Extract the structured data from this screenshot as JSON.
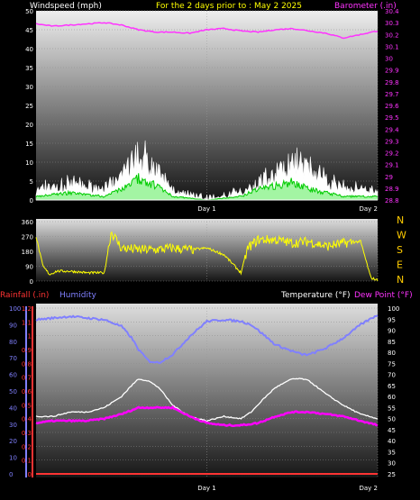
{
  "header": {
    "left_title": "Windspeed (mph)",
    "center_title": "For the 2 days prior to : May 2 2025",
    "right_title": "Barometer (.in)"
  },
  "colors": {
    "background": "#000000",
    "wind_white": "#ffffff",
    "wind_green": "#00cc00",
    "barometer": "#ff33ff",
    "direction": "#ffff00",
    "humidity": "#8080ff",
    "temperature": "#ffffff",
    "dewpoint": "#ff00ff",
    "rainfall": "#ff3333",
    "compass": "#ffcc00"
  },
  "chart_data": [
    {
      "type": "area",
      "title": "For the 2 days prior to : May 2 2025",
      "ylabel": "Windspeed (mph)",
      "ylabel_right": "Barometer (.in)",
      "ylim": [
        0,
        50
      ],
      "ylim_right": [
        28.8,
        30.4
      ],
      "yticks": [
        "0",
        "5",
        "10",
        "15",
        "20",
        "25",
        "30",
        "35",
        "40",
        "45",
        "50"
      ],
      "yticks_right": [
        "28.8",
        "28.9",
        "29",
        "29.1",
        "29.2",
        "29.3",
        "29.4",
        "29.5",
        "29.6",
        "29.7",
        "29.8",
        "29.9",
        "30",
        "30.1",
        "30.2",
        "30.3",
        "30.4"
      ],
      "xticks": [
        "Day 1",
        "Day 2"
      ],
      "grid": true,
      "series": [
        {
          "name": "Windspeed (mph)",
          "color": "#ffffff",
          "x": [
            0,
            0.03,
            0.06,
            0.1,
            0.15,
            0.2,
            0.25,
            0.28,
            0.3,
            0.33,
            0.36,
            0.4,
            0.45,
            0.5,
            0.55,
            0.6,
            0.63,
            0.66,
            0.7,
            0.73,
            0.76,
            0.8,
            0.85,
            0.9,
            0.95,
            1.0
          ],
          "values": [
            2,
            4,
            4,
            5,
            4,
            3,
            7,
            12,
            14,
            12,
            8,
            3,
            1,
            0,
            1,
            2,
            4,
            6,
            8,
            11,
            12,
            10,
            6,
            4,
            3,
            2
          ]
        },
        {
          "name": "Wind average",
          "color": "#00cc00",
          "x": [
            0,
            0.1,
            0.2,
            0.25,
            0.3,
            0.35,
            0.4,
            0.5,
            0.6,
            0.65,
            0.7,
            0.75,
            0.8,
            0.9,
            1.0
          ],
          "values": [
            1,
            2,
            1,
            3,
            6,
            4,
            1,
            0,
            1,
            3,
            4,
            5,
            3,
            1,
            1
          ]
        },
        {
          "name": "Barometer (.in)",
          "color": "#ff33ff",
          "axis": "right",
          "x": [
            0,
            0.05,
            0.1,
            0.15,
            0.2,
            0.25,
            0.3,
            0.35,
            0.4,
            0.45,
            0.5,
            0.55,
            0.6,
            0.65,
            0.7,
            0.75,
            0.8,
            0.85,
            0.9,
            0.95,
            1.0
          ],
          "values": [
            30.29,
            30.27,
            30.28,
            30.29,
            30.3,
            30.28,
            30.24,
            30.22,
            30.22,
            30.21,
            30.24,
            30.25,
            30.23,
            30.22,
            30.24,
            30.25,
            30.23,
            30.21,
            30.17,
            30.2,
            30.23
          ]
        }
      ]
    },
    {
      "type": "line",
      "ylim": [
        0,
        360
      ],
      "yticks": [
        "0",
        "90",
        "180",
        "270",
        "360"
      ],
      "compass_labels": [
        "N",
        "W",
        "S",
        "E",
        "N"
      ],
      "grid": true,
      "series": [
        {
          "name": "Wind direction",
          "color": "#ffff00",
          "x": [
            0,
            0.02,
            0.04,
            0.06,
            0.1,
            0.15,
            0.2,
            0.22,
            0.25,
            0.3,
            0.35,
            0.4,
            0.45,
            0.5,
            0.55,
            0.6,
            0.62,
            0.65,
            0.7,
            0.75,
            0.8,
            0.85,
            0.9,
            0.95,
            0.98,
            1.0
          ],
          "values": [
            270,
            90,
            40,
            60,
            60,
            50,
            50,
            300,
            200,
            190,
            190,
            200,
            190,
            200,
            160,
            50,
            200,
            250,
            250,
            230,
            240,
            210,
            230,
            240,
            20,
            5
          ]
        }
      ]
    },
    {
      "type": "line",
      "ylabel": "Rainfall (.in)",
      "ylabel2": "Humidity",
      "ylabel_right": "Temperature (°F)",
      "ylabel_right2": "Dew Point (°F)",
      "ylim_rain": [
        0,
        1.2
      ],
      "ylim_humidity": [
        0,
        100
      ],
      "ylim_temp": [
        25,
        100
      ],
      "yticks_humidity": [
        "0",
        "10",
        "20",
        "30",
        "40",
        "50",
        "60",
        "70",
        "80",
        "90",
        "100"
      ],
      "yticks_rain": [
        "0",
        "0.1",
        "0.2",
        "0.3",
        "0.4",
        "0.5",
        "0.6",
        "0.7",
        "0.8",
        "0.9",
        "1",
        "1.1",
        "1.2"
      ],
      "yticks_temp": [
        "25",
        "30",
        "35",
        "40",
        "45",
        "50",
        "55",
        "60",
        "65",
        "70",
        "75",
        "80",
        "85",
        "90",
        "95",
        "100"
      ],
      "xticks": [
        "Day 1",
        "Day 2"
      ],
      "grid": true,
      "series": [
        {
          "name": "Humidity",
          "color": "#8080ff",
          "x": [
            0,
            0.05,
            0.1,
            0.15,
            0.2,
            0.25,
            0.28,
            0.3,
            0.33,
            0.36,
            0.4,
            0.45,
            0.5,
            0.55,
            0.6,
            0.63,
            0.66,
            0.7,
            0.75,
            0.78,
            0.8,
            0.85,
            0.9,
            0.95,
            1.0
          ],
          "values": [
            93,
            94,
            95,
            94,
            93,
            89,
            82,
            75,
            68,
            67,
            72,
            83,
            92,
            93,
            92,
            90,
            85,
            78,
            74,
            72,
            72,
            76,
            82,
            90,
            96
          ]
        },
        {
          "name": "Temperature",
          "color": "#ffffff",
          "axis": "right",
          "x": [
            0,
            0.05,
            0.1,
            0.15,
            0.2,
            0.25,
            0.28,
            0.3,
            0.33,
            0.36,
            0.4,
            0.45,
            0.5,
            0.55,
            0.6,
            0.63,
            0.66,
            0.7,
            0.75,
            0.78,
            0.8,
            0.85,
            0.9,
            0.95,
            1.0
          ],
          "values": [
            51,
            51,
            53,
            53,
            55,
            60,
            65,
            68,
            67,
            64,
            56,
            51,
            49,
            51,
            50,
            53,
            58,
            64,
            68,
            68,
            67,
            61,
            56,
            52,
            50
          ]
        },
        {
          "name": "Dew Point",
          "color": "#ff00ff",
          "axis": "right",
          "x": [
            0,
            0.05,
            0.1,
            0.15,
            0.2,
            0.25,
            0.3,
            0.35,
            0.4,
            0.45,
            0.5,
            0.55,
            0.6,
            0.65,
            0.7,
            0.75,
            0.8,
            0.85,
            0.9,
            0.95,
            1.0
          ],
          "values": [
            48,
            49,
            49,
            49,
            50,
            52,
            55,
            55,
            55,
            51,
            48,
            47,
            47,
            48,
            51,
            53,
            53,
            52,
            51,
            49,
            47
          ]
        },
        {
          "name": "Rainfall",
          "color": "#ff3333",
          "axis": "rain",
          "x": [
            0,
            1
          ],
          "values": [
            0,
            0
          ]
        }
      ]
    }
  ],
  "bottom": {
    "rainfall_label": "Rainfall (.in)",
    "humidity_label": "Humidity",
    "temperature_label": "Temperature (°F)",
    "dewpoint_label": "Dew Point (°F)"
  }
}
